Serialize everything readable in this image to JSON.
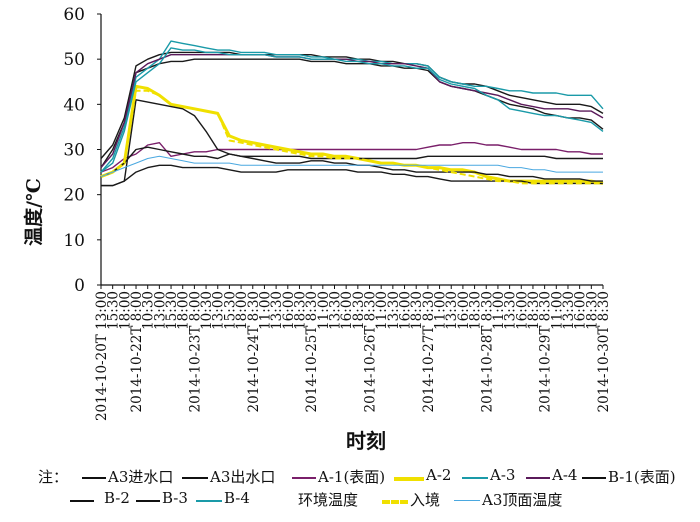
{
  "chart_data": {
    "type": "line",
    "ylabel": "温度/℃",
    "xlabel": "时刻",
    "ylim": [
      0,
      60
    ],
    "yticks": [
      0,
      10,
      20,
      30,
      40,
      50,
      60
    ],
    "grid": false,
    "legend_position": "bottom",
    "legend_prefix": "注：",
    "xticks": [
      "2014-10-20T 13:00",
      "15:30",
      "18:00",
      "2014-10-22T 8:00",
      "10:30",
      "13:00",
      "15:30",
      "18:00",
      "2014-10-23T 8:00",
      "10:30",
      "13:00",
      "15:30",
      "18:00",
      "2014-10-24T 8:30",
      "11:00",
      "13:30",
      "16:00",
      "18:30",
      "2014-10-25T 8:30",
      "11:00",
      "13:30",
      "16:00",
      "18:30",
      "2014-10-26T 8:30",
      "11:00",
      "13:30",
      "16:00",
      "18:30",
      "2014-10-27T 8:30",
      "11:00",
      "13:30",
      "16:00",
      "18:30",
      "2014-10-28T 8:30",
      "11:00",
      "13:30",
      "16:00",
      "18:30",
      "2014-10-29T 8:30",
      "11:00",
      "13:30",
      "16:00",
      "18:30",
      "2014-10-30T 8:30"
    ],
    "series": [
      {
        "name": "A3进水口",
        "color": "#1a1a1a",
        "values": [
          28,
          31,
          37,
          48.5,
          50,
          51,
          51.5,
          51.5,
          51.5,
          51.5,
          51.5,
          51.5,
          51,
          51,
          51,
          51,
          51,
          51,
          51,
          50.5,
          50.5,
          50.5,
          50,
          50,
          49.5,
          49.5,
          49,
          49,
          48.5,
          46,
          45,
          44.5,
          44.5,
          44,
          43,
          42,
          41.5,
          41,
          40.5,
          40,
          40,
          40,
          39.5,
          38
        ]
      },
      {
        "name": "A3出水口",
        "color": "#1a1a1a",
        "values": [
          26,
          30,
          36,
          47,
          48,
          49,
          49.5,
          49.5,
          50,
          50,
          50,
          50,
          50,
          50,
          50,
          50,
          50,
          50,
          49.5,
          49.5,
          49.5,
          49,
          49,
          49,
          48.5,
          48.5,
          48,
          48,
          47.5,
          45,
          44,
          43.5,
          43,
          42,
          41,
          40,
          39.5,
          39,
          38,
          37.5,
          37,
          37,
          36.5,
          34.5
        ]
      },
      {
        "name": "A-1(表面)",
        "color": "#7a1f6a",
        "values": [
          25,
          26,
          28,
          29,
          31,
          31.5,
          28.5,
          29,
          29.5,
          29.5,
          30,
          30,
          30,
          30,
          30,
          30,
          30,
          30,
          30,
          30,
          30,
          30,
          30,
          30,
          30,
          30,
          30,
          30,
          30.5,
          31,
          31,
          31.5,
          31.5,
          31,
          31,
          30.5,
          30,
          30,
          30,
          30,
          29.5,
          29.5,
          29,
          29
        ]
      },
      {
        "name": "A-2",
        "color": "#f0e000",
        "values": [
          24,
          25,
          27,
          44,
          43.5,
          42,
          40,
          39.5,
          39,
          38.5,
          38,
          33,
          32,
          31.5,
          31,
          30.5,
          30,
          29.5,
          29,
          29,
          28.5,
          28.5,
          28,
          27.5,
          27,
          27,
          26.5,
          26.5,
          26,
          26,
          25.5,
          25.5,
          25,
          24,
          23.5,
          23,
          23,
          23,
          23,
          23,
          23,
          23,
          23,
          22.5
        ]
      },
      {
        "name": "A-3",
        "color": "#1a9aa8",
        "values": [
          25,
          28,
          35,
          46,
          48,
          50,
          54,
          53.5,
          53,
          52.5,
          52,
          52,
          51.5,
          51.5,
          51.5,
          51,
          51,
          51,
          50.5,
          50.5,
          50,
          50,
          50,
          49.5,
          49.5,
          49,
          49,
          49,
          48.5,
          46,
          45,
          44.5,
          44,
          44,
          43.5,
          43,
          43,
          42.5,
          42.5,
          42.5,
          42,
          42,
          42,
          39
        ]
      },
      {
        "name": "A-4",
        "color": "#5a1a5a",
        "values": [
          26,
          29,
          36,
          47,
          49,
          50,
          51,
          51,
          51,
          51,
          51,
          51,
          51,
          51,
          51,
          50.5,
          50.5,
          50.5,
          50,
          50,
          50,
          50,
          49.5,
          49.5,
          49,
          49,
          49,
          48.5,
          48,
          45,
          44,
          43.5,
          43,
          42.5,
          42,
          41,
          40,
          39.5,
          39,
          39,
          39,
          38.5,
          38.5,
          37
        ]
      },
      {
        "name": "B-1(表面)",
        "color": "#1a1a1a",
        "values": [
          22,
          22,
          23,
          41,
          40.5,
          40,
          39.5,
          39,
          37.5,
          34,
          30,
          29,
          28.5,
          28.5,
          28.5,
          28.5,
          28.5,
          28.5,
          28,
          28,
          28,
          28,
          28,
          28,
          28,
          28,
          28,
          28,
          28.5,
          28.5,
          28.5,
          28.5,
          28.5,
          28.5,
          28.5,
          28.5,
          28.5,
          28.5,
          28.5,
          28,
          28,
          28,
          28,
          28
        ]
      },
      {
        "name": "B-2",
        "color": "#1a1a1a",
        "values": [
          22,
          22,
          23,
          25,
          26,
          26.5,
          26.5,
          26,
          26,
          26,
          26,
          25.5,
          25,
          25,
          25,
          25,
          25.5,
          25.5,
          25.5,
          25.5,
          25.5,
          25.5,
          25,
          25,
          25,
          24.5,
          24.5,
          24,
          24,
          23.5,
          23,
          23,
          23,
          23,
          23,
          23,
          23,
          22.5,
          22.5,
          22.5,
          22.5,
          22.5,
          22.5,
          22.5
        ]
      },
      {
        "name": "B-3",
        "color": "#1a1a1a",
        "values": [
          24,
          25,
          27,
          30,
          30.5,
          30,
          29.5,
          29,
          28.5,
          28.5,
          28,
          29,
          28.5,
          28,
          27.5,
          27,
          27,
          27,
          27.5,
          27.5,
          27,
          27,
          26.5,
          26.5,
          26,
          25.5,
          25.5,
          25,
          25,
          25,
          25,
          25,
          25,
          24.5,
          24.5,
          24,
          24,
          24,
          23.5,
          23.5,
          23.5,
          23.5,
          23,
          23
        ]
      },
      {
        "name": "B-4",
        "color": "#1a9aa8",
        "values": [
          25,
          27,
          34,
          45,
          47,
          49,
          52.5,
          52,
          52,
          51.5,
          51.5,
          51,
          51,
          51,
          51,
          50.5,
          50.5,
          50.5,
          50,
          50,
          50,
          49.5,
          49.5,
          49,
          49,
          48.5,
          48.5,
          48,
          48,
          45.5,
          44.5,
          44,
          43.5,
          42,
          41,
          39,
          38.5,
          38,
          37.5,
          37.5,
          37,
          36.5,
          36,
          34
        ]
      },
      {
        "name": "环境温度",
        "color": "#ffffff",
        "values": []
      },
      {
        "name": "入境",
        "color": "#f0e000",
        "values": [
          24,
          25,
          27,
          43,
          43,
          42,
          40,
          39.5,
          39,
          38.5,
          38,
          32,
          31.5,
          31,
          30.5,
          30,
          29.5,
          29,
          28.5,
          28.5,
          28,
          28,
          28,
          27.5,
          27,
          27,
          26.5,
          26.5,
          26,
          25.5,
          25,
          24.5,
          24,
          23.5,
          23,
          23,
          22.5,
          22.5,
          22.5,
          22.5,
          22.5,
          22.5,
          22.5,
          22.5
        ]
      },
      {
        "name": "A3顶面温度",
        "color": "#4aa8e0",
        "values": [
          24,
          25,
          26,
          27,
          28,
          28.5,
          28,
          27.5,
          27,
          27,
          27,
          27,
          26.5,
          26.5,
          26.5,
          26.5,
          26.5,
          26.5,
          26.5,
          26.5,
          26.5,
          26.5,
          26.5,
          26.5,
          26.5,
          26.5,
          26.5,
          26.5,
          26.5,
          26.5,
          26.5,
          26.5,
          26.5,
          26.5,
          26.5,
          26,
          26,
          25.5,
          25.5,
          25,
          25,
          25,
          25,
          25
        ]
      }
    ]
  }
}
